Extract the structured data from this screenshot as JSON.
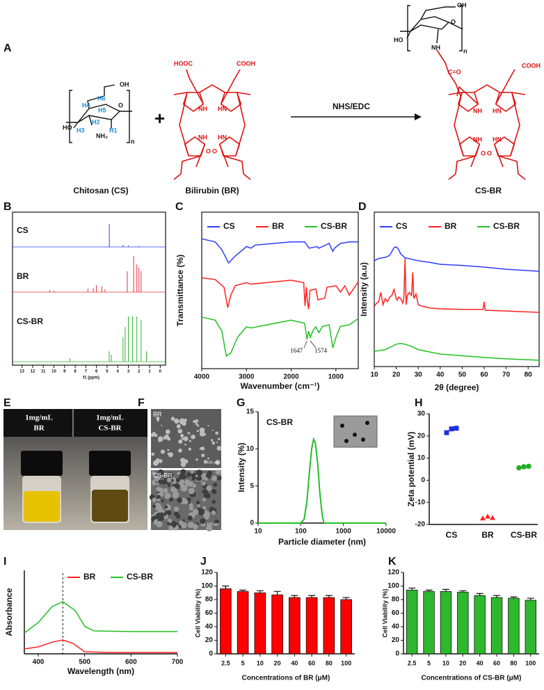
{
  "scheme": {
    "panel": "A",
    "reagent": "NHS/EDC",
    "plus": "+",
    "names": [
      "Chitosan (CS)",
      "Bilirubin (BR)",
      "CS-BR"
    ],
    "cs_atoms": [
      "OH",
      "H6",
      "H4",
      "H5",
      "O",
      "HO",
      "H3",
      "H2",
      "H1",
      "NH₂",
      "n"
    ],
    "br_atoms": [
      "HOOC",
      "COOH",
      "NH",
      "HN",
      "NH",
      "HN",
      "O",
      "O"
    ],
    "csbr_atoms": [
      "OH",
      "O",
      "HO",
      "NH",
      "n",
      "C=O",
      "COOH",
      "NH",
      "HN",
      "NH",
      "HN",
      "O",
      "O"
    ]
  },
  "photo": {
    "panel": "E",
    "labels": [
      [
        "1mg/mL",
        "BR"
      ],
      [
        "1mg/mL",
        "CS-BR"
      ]
    ]
  },
  "sem": {
    "panel": "F",
    "labels": [
      "BR",
      "CS-BR"
    ],
    "scale_bars": [
      "100 um",
      "100 um"
    ]
  },
  "chart_data": [
    {
      "type": "nmr",
      "panel": "B",
      "frame": true,
      "xlabel": "f1 (ppm)",
      "xlim": [
        13.5,
        -0.5
      ],
      "xticks": [
        13,
        12,
        11,
        10,
        9,
        8,
        7,
        6,
        5,
        4,
        3,
        2,
        1,
        0
      ],
      "series": [
        {
          "name": "CS",
          "color": "#3535ff",
          "x": [
            4.79,
            3.5,
            3.0,
            2.0
          ],
          "values": [
            66,
            6,
            4,
            3
          ]
        },
        {
          "name": "BR",
          "color": "#e8303a",
          "x": [
            10.4,
            10.0,
            6.8,
            6.3,
            6.0,
            5.5,
            5.2,
            3.1,
            2.5,
            2.2,
            2.0,
            1.8
          ],
          "values": [
            6,
            4,
            10,
            12,
            20,
            16,
            8,
            60,
            104,
            80,
            70,
            60
          ]
        },
        {
          "name": "CS-BR",
          "color": "#2cb52c",
          "x": [
            8.5,
            4.8,
            4.6,
            3.5,
            3.3,
            3.0,
            2.6,
            2.2,
            1.8,
            1.3
          ],
          "values": [
            10,
            30,
            20,
            70,
            100,
            130,
            130,
            130,
            120,
            30
          ]
        }
      ]
    },
    {
      "type": "line",
      "panel": "C",
      "frame": true,
      "legend": "top",
      "xlabel": "Wavenumber (cm⁻¹)",
      "ylabel": "Transmittance (%)",
      "xlim": [
        4000,
        500
      ],
      "xticks": [
        4000,
        3000,
        2000,
        1000
      ],
      "ylim": [
        0,
        100
      ],
      "annotations": [
        1647,
        1574
      ],
      "series": [
        {
          "name": "CS",
          "color": "#2d3cff",
          "x": [
            4000,
            3700,
            3550,
            3400,
            3250,
            3000,
            2900,
            2800,
            2000,
            1700,
            1650,
            1600,
            1420,
            1380,
            1150,
            1070,
            1030,
            900,
            700,
            500
          ],
          "values": [
            83,
            81,
            76,
            67.5,
            72,
            78,
            77,
            79,
            81,
            81,
            79,
            77,
            78,
            77,
            80,
            75,
            77,
            80,
            81,
            81
          ]
        },
        {
          "name": "BR",
          "color": "#ff2020",
          "x": [
            4000,
            3700,
            3500,
            3420,
            3350,
            3250,
            3000,
            2900,
            2000,
            1720,
            1690,
            1660,
            1640,
            1610,
            1580,
            1450,
            1400,
            1250,
            1200,
            1000,
            900,
            800,
            700,
            500
          ],
          "values": [
            58,
            57,
            52,
            39,
            47,
            53,
            55,
            54,
            56.5,
            55,
            40,
            52,
            44,
            38,
            50,
            51,
            44,
            45,
            52,
            53,
            49,
            53,
            47,
            55.5
          ]
        },
        {
          "name": "CS-BR",
          "color": "#22c022",
          "x": [
            4000,
            3700,
            3550,
            3450,
            3350,
            3200,
            3000,
            2900,
            2000,
            1700,
            1647,
            1610,
            1574,
            1500,
            1450,
            1380,
            1300,
            1150,
            1070,
            1000,
            900,
            700,
            500
          ],
          "values": [
            33,
            31,
            24,
            8,
            10,
            20,
            26.7,
            26,
            31,
            29,
            18.7,
            24,
            20,
            25,
            26.7,
            23,
            27,
            28,
            13.3,
            20,
            27,
            28,
            32
          ]
        }
      ]
    },
    {
      "type": "line",
      "panel": "D",
      "frame": true,
      "legend": "top",
      "xlabel": "2θ (degree)",
      "ylabel": "Intensity (a.u)",
      "xlim": [
        10,
        85
      ],
      "xticks": [
        10,
        20,
        30,
        40,
        50,
        60,
        70,
        80
      ],
      "ylim": [
        0,
        100
      ],
      "series": [
        {
          "name": "CS",
          "color": "#2d3cff",
          "x": [
            10,
            12,
            15,
            17,
            18,
            19,
            20,
            21,
            22,
            24,
            27,
            30,
            35,
            40,
            50,
            60,
            70,
            85
          ],
          "values": [
            68.5,
            70,
            70.7,
            72,
            74.5,
            77,
            77.5,
            76,
            73,
            70.5,
            69.5,
            68.5,
            67.5,
            66.2,
            65.5,
            64.4,
            63,
            61.7
          ]
        },
        {
          "name": "BR",
          "color": "#ff2020",
          "x": [
            10,
            11,
            12,
            13,
            14,
            15,
            16,
            17,
            18,
            19,
            20,
            20.5,
            21,
            22,
            23,
            23.5,
            24,
            24.5,
            25,
            26,
            27,
            27.5,
            28,
            29,
            30,
            32,
            35,
            40,
            50,
            59.5,
            60,
            60.5,
            70,
            85
          ],
          "values": [
            39,
            41,
            42,
            48,
            40,
            44,
            42,
            45,
            46,
            50,
            44,
            43,
            45,
            44,
            41,
            45,
            70,
            40,
            46,
            48,
            46,
            61,
            44,
            47,
            40,
            39,
            38,
            37.4,
            37,
            37,
            42,
            36.5,
            36,
            35.1
          ]
        },
        {
          "name": "CS-BR",
          "color": "#22c022",
          "x": [
            10,
            12,
            15,
            18,
            20,
            22,
            24,
            27,
            30,
            35,
            40,
            50,
            60,
            70,
            85
          ],
          "values": [
            9.9,
            10.3,
            11,
            13,
            14.5,
            14.9,
            14.5,
            13,
            11,
            9.5,
            8.1,
            7,
            5.9,
            5,
            4.1
          ]
        }
      ]
    },
    {
      "type": "line",
      "panel": "G",
      "label": "CS-BR",
      "xlog": true,
      "xlabel": "Particle diameter (nm)",
      "ylabel": "Intensity (%)",
      "xlim": [
        10,
        10000
      ],
      "xticks": [
        10,
        100,
        1000,
        10000
      ],
      "ylim": [
        0,
        15
      ],
      "yticks": [
        0,
        5,
        10,
        15
      ],
      "series": [
        {
          "color": "#22c022",
          "x": [
            10,
            100,
            120,
            140,
            160,
            180,
            200,
            220,
            250,
            280,
            320,
            350,
            10000
          ],
          "values": [
            0,
            0,
            0.5,
            3,
            7,
            10,
            11.3,
            10.8,
            8,
            4,
            1,
            0,
            0
          ]
        }
      ]
    },
    {
      "type": "dot",
      "panel": "H",
      "ylabel": "Zeta potential (mV)",
      "categories": [
        "CS",
        "BR",
        "CS-BR"
      ],
      "ylim": [
        -20,
        30
      ],
      "yticks": [
        30,
        20,
        10,
        0,
        -10,
        -20
      ],
      "colors": [
        "#1f2fe0",
        "#ff2020",
        "#22b022"
      ],
      "markers": [
        "square",
        "triangle",
        "circle"
      ],
      "values": [
        [
          21.5,
          23.2,
          23.5
        ],
        [
          -17.2,
          -16.4,
          -17
        ],
        [
          5.6,
          6.1,
          6.3
        ]
      ]
    },
    {
      "type": "line",
      "panel": "I",
      "legend": "top",
      "xlabel": "Wavelength (nm)",
      "ylabel": "Absorbance",
      "xlim": [
        370,
        700
      ],
      "xticks": [
        400,
        500,
        600,
        700
      ],
      "ylim": [
        0,
        100
      ],
      "vline": 453,
      "series": [
        {
          "name": "BR",
          "color": "#ff2020",
          "x": [
            370,
            400,
            430,
            453,
            475,
            500,
            550,
            700
          ],
          "values": [
            5.8,
            8.3,
            14,
            16.7,
            12.5,
            2.5,
            1.7,
            1.7
          ]
        },
        {
          "name": "CS-BR",
          "color": "#22c022",
          "x": [
            370,
            400,
            430,
            453,
            480,
            500,
            520,
            600,
            700
          ],
          "values": [
            25,
            37.5,
            56.7,
            62.5,
            51.7,
            33,
            27.5,
            26.7,
            26.7
          ]
        }
      ]
    },
    {
      "type": "bar",
      "panel": "J",
      "xlabel": "Concentrations of BR (μM)",
      "ylabel": "Cell Viability (%)",
      "color": "#ff0000",
      "categories": [
        "2.5",
        "5",
        "10",
        "20",
        "40",
        "60",
        "80",
        "100"
      ],
      "values": [
        96,
        92,
        90,
        87,
        83,
        83,
        83,
        80
      ],
      "errors": [
        4,
        2,
        3,
        5,
        3,
        3,
        3,
        3
      ],
      "ylim": [
        0,
        120
      ],
      "yticks": [
        0,
        20,
        40,
        60,
        80,
        100,
        120
      ]
    },
    {
      "type": "bar",
      "panel": "K",
      "xlabel": "Concentrations of CS-BR (μM)",
      "ylabel": "Cell Viability (%)",
      "color": "#2db82d",
      "categories": [
        "2.5",
        "5",
        "10",
        "20",
        "40",
        "60",
        "80",
        "100"
      ],
      "values": [
        94,
        92,
        92,
        91,
        86,
        83,
        82,
        79
      ],
      "errors": [
        3,
        2,
        3,
        2,
        3,
        3,
        2,
        3
      ],
      "ylim": [
        0,
        120
      ],
      "yticks": [
        0,
        20,
        40,
        60,
        80,
        100,
        120
      ]
    }
  ]
}
